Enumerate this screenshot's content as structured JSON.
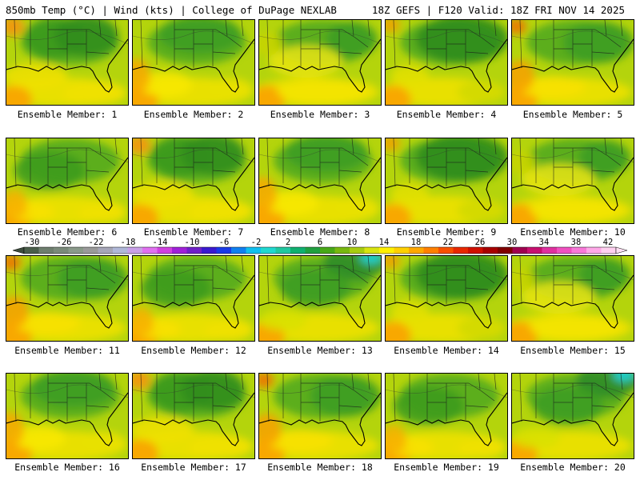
{
  "header": {
    "left": "850mb Temp (°C) | Wind (kts) | College of DuPage NEXLAB",
    "right": "18Z GEFS | F120 Valid: 18Z FRI NOV 14 2025"
  },
  "members": [
    {
      "label": "Ensemble Member: 1",
      "variant": 0
    },
    {
      "label": "Ensemble Member: 2",
      "variant": 1
    },
    {
      "label": "Ensemble Member: 3",
      "variant": 2
    },
    {
      "label": "Ensemble Member: 4",
      "variant": 3
    },
    {
      "label": "Ensemble Member: 5",
      "variant": 4
    },
    {
      "label": "Ensemble Member: 6",
      "variant": 5
    },
    {
      "label": "Ensemble Member: 7",
      "variant": 0
    },
    {
      "label": "Ensemble Member: 8",
      "variant": 1
    },
    {
      "label": "Ensemble Member: 9",
      "variant": 3
    },
    {
      "label": "Ensemble Member: 10",
      "variant": 2
    },
    {
      "label": "Ensemble Member: 11",
      "variant": 4
    },
    {
      "label": "Ensemble Member: 12",
      "variant": 5
    },
    {
      "label": "Ensemble Member: 13",
      "variant": 6
    },
    {
      "label": "Ensemble Member: 14",
      "variant": 3
    },
    {
      "label": "Ensemble Member: 15",
      "variant": 2
    },
    {
      "label": "Ensemble Member: 16",
      "variant": 1
    },
    {
      "label": "Ensemble Member: 17",
      "variant": 0
    },
    {
      "label": "Ensemble Member: 18",
      "variant": 4
    },
    {
      "label": "Ensemble Member: 19",
      "variant": 5
    },
    {
      "label": "Ensemble Member: 20",
      "variant": 6
    }
  ],
  "colorbar": {
    "labels": [
      "-30",
      "-26",
      "-22",
      "-18",
      "-14",
      "-10",
      "-6",
      "-2",
      "2",
      "6",
      "10",
      "14",
      "18",
      "22",
      "26",
      "30",
      "34",
      "38",
      "42"
    ],
    "colors": [
      "#4a5e4a",
      "#6e7e6e",
      "#7a8a7a",
      "#8a9a8a",
      "#9a9a9a",
      "#a6a6b8",
      "#b0b8d8",
      "#c9a0e8",
      "#e070f0",
      "#d040e0",
      "#a020d8",
      "#7020c8",
      "#3a1ad0",
      "#1a3ae8",
      "#1080f0",
      "#10c0f0",
      "#20d8d0",
      "#20c8a0",
      "#10b070",
      "#20a040",
      "#48a818",
      "#78b810",
      "#a8cc10",
      "#d8e410",
      "#fff000",
      "#ffd000",
      "#ffa800",
      "#ff8000",
      "#f85000",
      "#e82800",
      "#d01000",
      "#a80000",
      "#800000",
      "#a00050",
      "#c81070",
      "#e030a0",
      "#f050c0",
      "#f878d8",
      "#ffa8e8",
      "#ffd0f0"
    ],
    "grey_swatches": [
      "#555555",
      "#6a6a6a",
      "#7f7f7f",
      "#949494",
      "#a9a9a9"
    ]
  }
}
